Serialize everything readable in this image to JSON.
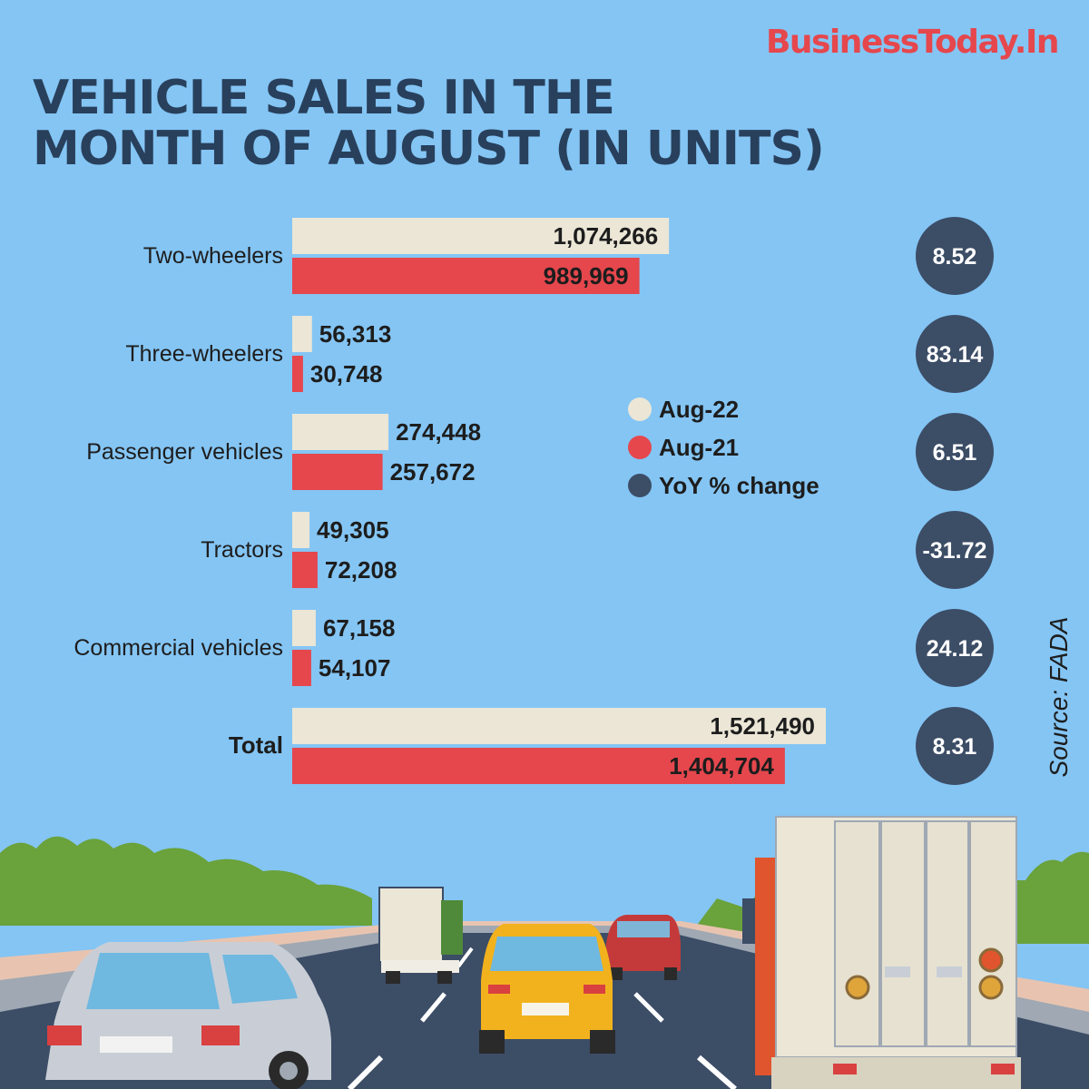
{
  "brand": "BusinessToday.In",
  "title_lines": [
    "VEHICLE SALES IN THE",
    "MONTH OF AUGUST (IN UNITS)"
  ],
  "source": "Source: FADA",
  "legend": [
    {
      "label": "Aug-22",
      "color": "#ebe6d6"
    },
    {
      "label": "Aug-21",
      "color": "#e5474d"
    },
    {
      "label": "YoY % change",
      "color": "#3c4d66"
    }
  ],
  "chart_data": {
    "type": "bar",
    "orientation": "horizontal",
    "categories": [
      "Two-wheelers",
      "Three-wheelers",
      "Passenger vehicles",
      "Tractors",
      "Commercial vehicles",
      "Total"
    ],
    "series": [
      {
        "name": "Aug-22",
        "values": [
          1074266,
          56313,
          274448,
          49305,
          67158,
          1521490
        ],
        "labels": [
          "1,074,266",
          "56,313",
          "274,448",
          "49,305",
          "67,158",
          "1,521,490"
        ],
        "color": "#ebe6d6"
      },
      {
        "name": "Aug-21",
        "values": [
          989969,
          30748,
          257672,
          72208,
          54107,
          1404704
        ],
        "labels": [
          "989,969",
          "30,748",
          "257,672",
          "72,208",
          "54,107",
          "1,404,704"
        ],
        "color": "#e5474d"
      }
    ],
    "yoy_change": {
      "name": "YoY % change",
      "values": [
        8.52,
        83.14,
        6.51,
        -31.72,
        24.12,
        8.31
      ],
      "labels": [
        "8.52",
        "83.14",
        "6.51",
        "-31.72",
        "24.12",
        "8.31"
      ],
      "color": "#3c4d66"
    },
    "bold_category": "Total",
    "xlim": [
      0,
      1521490
    ],
    "grid": false,
    "legend_position": "center-right"
  }
}
